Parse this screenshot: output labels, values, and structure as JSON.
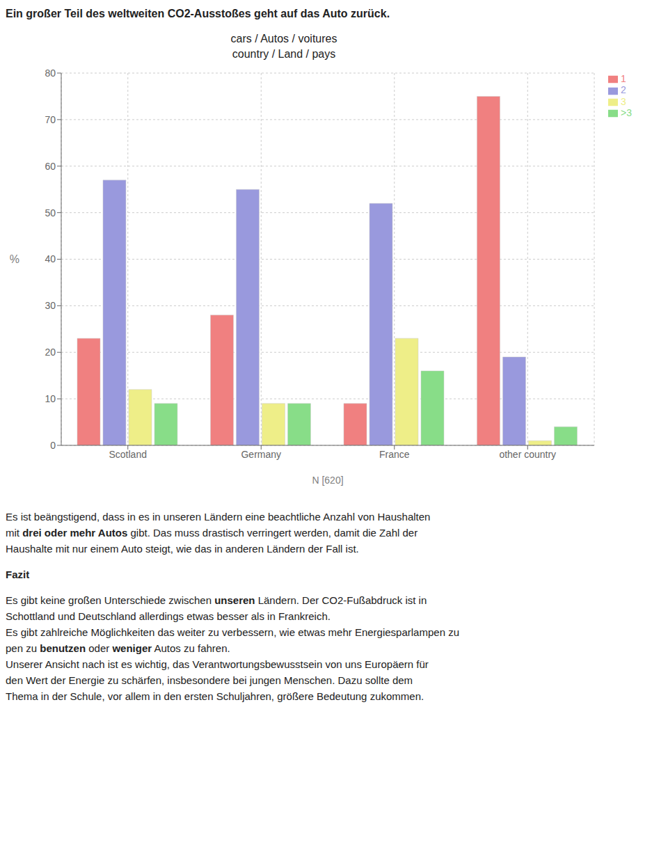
{
  "chart_data": {
    "type": "bar",
    "title": "cars / Autos / voitures\ncountry / Land / pays",
    "categories": [
      "Scotland",
      "Germany",
      "France",
      "other country"
    ],
    "series": [
      {
        "name": "1",
        "color": "#F08080",
        "values": [
          23,
          28,
          9,
          75
        ]
      },
      {
        "name": "2",
        "color": "#9999DD",
        "values": [
          57,
          55,
          52,
          19
        ]
      },
      {
        "name": "3",
        "color": "#EEEE88",
        "values": [
          12,
          9,
          23,
          1
        ]
      },
      {
        "name": ">3",
        "color": "#88DD88",
        "values": [
          9,
          9,
          16,
          4
        ]
      }
    ],
    "y_label": "%",
    "x_label": "N [620]",
    "ylim": [
      0,
      80
    ],
    "yticks": [
      0,
      10,
      20,
      30,
      40,
      50,
      60,
      70,
      80
    ],
    "grid": true,
    "legend": "right",
    "annotations": [
      [
        [
          [
            "Ein großer Teil des weltweiten CO2-Ausstoßes geht auf das Auto zurück."
          ]
        ]
      ],
      [
        [
          "Es ist beängstigend, dass in es in unseren Ländern eine beachtliche Anzahl von Haushalten"
        ],
        [
          "mit ",
          [
            "drei oder mehr Autos"
          ],
          " gibt. Das muss drastisch verringert werden, damit die Zahl der"
        ],
        [
          "Haushalte mit nur einem Auto steigt, wie das in anderen Ländern der Fall ist."
        ]
      ],
      [
        [
          [
            "Fazit"
          ]
        ]
      ],
      [
        [
          "Es gibt keine großen Unterschiede zwischen ",
          [
            "unseren"
          ],
          " Ländern. Der CO2-Fußabdruck ist in"
        ],
        [
          "Schottland und Deutschland allerdings etwas besser als in Frankreich."
        ],
        [
          "Es gibt zahlreiche Möglichkeiten das weiter zu verbessern, wie etwas mehr Energiesparlampen zu"
        ],
        [
          "pen zu ",
          [
            "benutzen"
          ],
          " oder ",
          [
            "weniger"
          ],
          " Autos zu fahren."
        ],
        [
          "Unserer Ansicht nach ist es wichtig, das Verantwortungsbewusstsein von uns Europäern für"
        ],
        [
          "den Wert der Energie zu schärfen, insbesondere bei jungen Menschen. Dazu sollte dem"
        ],
        [
          "Thema in der Schule, vor allem in den ersten Schuljahren, größere Bedeutung zukommen."
        ]
      ]
    ]
  }
}
